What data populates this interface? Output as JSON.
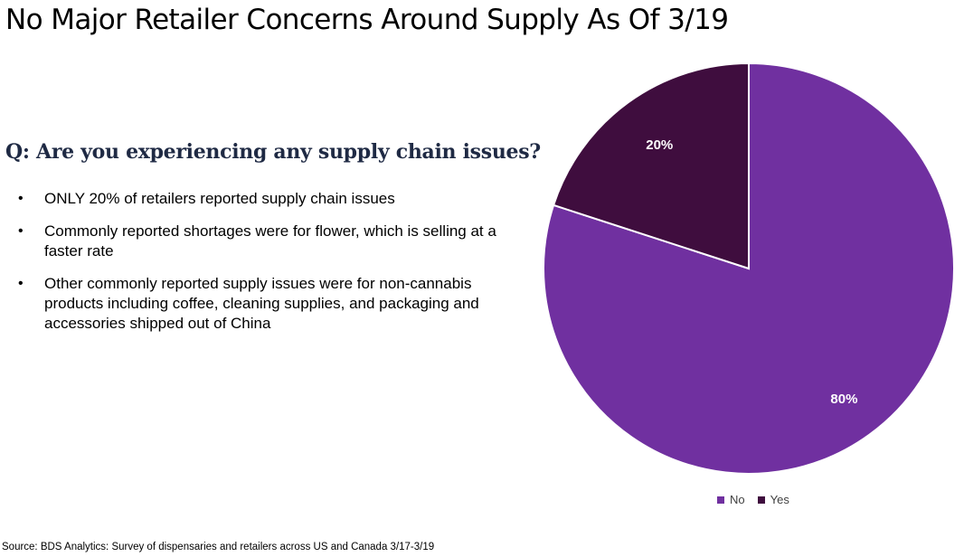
{
  "title": "No Major Retailer Concerns Around Supply As Of 3/19",
  "question": "Q: Are you experiencing any supply chain issues?",
  "bullets": [
    "ONLY 20% of retailers reported supply chain issues",
    "Commonly reported shortages were for flower, which is selling at a faster rate",
    "Other commonly reported supply issues were for non-cannabis products including coffee, cleaning supplies, and packaging and accessories shipped out of China"
  ],
  "bullet_symbol": "•",
  "source": "Source: BDS Analytics: Survey of dispensaries and retailers across US and Canada 3/17-3/19",
  "chart_data": {
    "type": "pie",
    "slices": [
      {
        "label": "No",
        "value": 80,
        "data_label": "80%",
        "color": "#7030a0"
      },
      {
        "label": "Yes",
        "value": 20,
        "data_label": "20%",
        "color": "#3f0d3e"
      }
    ],
    "start": "12 o'clock",
    "direction": "clockwise",
    "legend_position": "bottom"
  }
}
